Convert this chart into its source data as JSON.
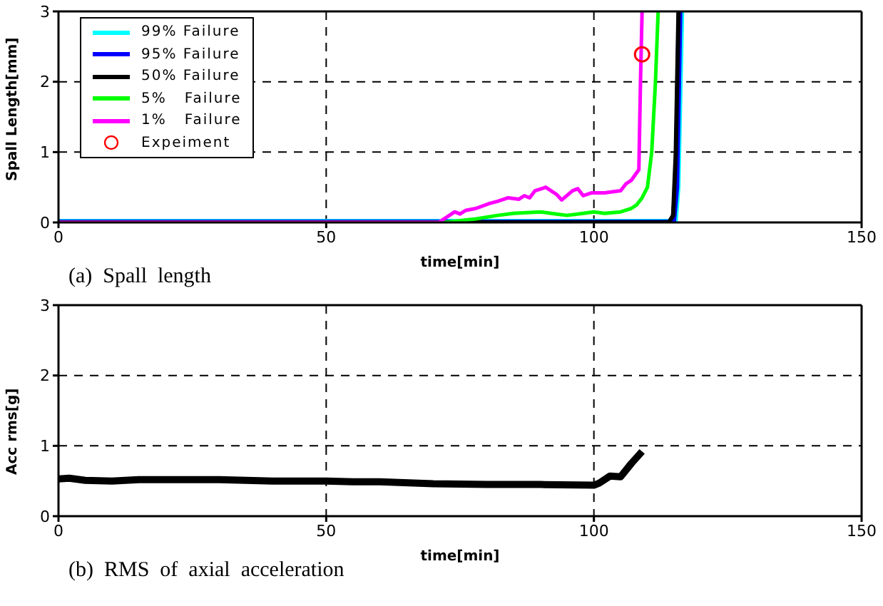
{
  "chart_data": [
    {
      "type": "line",
      "xlabel": "time[min]",
      "ylabel": "Spall Length[mm]",
      "xlim": [
        0,
        150
      ],
      "xticks": [
        0,
        50,
        100,
        150
      ],
      "ylim": [
        0,
        3
      ],
      "yticks": [
        0,
        1,
        2,
        3
      ],
      "grid": true,
      "legend": "top left",
      "line_style": "solid",
      "annotations": [
        "(a)  Spall  length"
      ],
      "series": [
        {
          "name": "99% Failure",
          "color": "#00ffff",
          "marker": "none",
          "x": [
            0,
            115,
            115.5,
            116.2
          ],
          "values": [
            0,
            0,
            0.5,
            3
          ]
        },
        {
          "name": "95% Failure",
          "color": "#0000ff",
          "marker": "none",
          "x": [
            0,
            114.8,
            115.4,
            116
          ],
          "values": [
            0,
            0,
            0.5,
            3
          ]
        },
        {
          "name": "50% Failure",
          "color": "#000000",
          "marker": "none",
          "x": [
            0,
            114,
            114.8,
            115.3,
            115.8
          ],
          "values": [
            0,
            0,
            0.1,
            1,
            3
          ]
        },
        {
          "name": "5%   Failure",
          "color": "#00ff00",
          "marker": "none",
          "x": [
            0,
            72,
            78,
            82,
            85,
            90,
            93,
            95,
            98,
            100,
            102,
            105,
            107,
            108,
            109,
            110,
            110.8,
            111.5,
            112
          ],
          "values": [
            0,
            0,
            0.05,
            0.1,
            0.13,
            0.15,
            0.12,
            0.1,
            0.13,
            0.15,
            0.13,
            0.15,
            0.2,
            0.25,
            0.35,
            0.5,
            1,
            2,
            3
          ]
        },
        {
          "name": "1%   Failure",
          "color": "#ff00ff",
          "marker": "none",
          "x": [
            0,
            71,
            73,
            74,
            75,
            76,
            78,
            80.5,
            82,
            84,
            86,
            87,
            88,
            89,
            91,
            92,
            93,
            94,
            96,
            97,
            98,
            99.5,
            102,
            105,
            106,
            107,
            108.4,
            108.7,
            109
          ],
          "values": [
            0,
            0,
            0.1,
            0.15,
            0.12,
            0.17,
            0.2,
            0.27,
            0.3,
            0.35,
            0.33,
            0.38,
            0.35,
            0.45,
            0.5,
            0.45,
            0.4,
            0.32,
            0.45,
            0.48,
            0.38,
            0.42,
            0.42,
            0.45,
            0.55,
            0.6,
            0.75,
            2,
            3
          ]
        },
        {
          "name": "Expeiment",
          "type": "scatter",
          "color": "#ff0000",
          "marker": "circle",
          "x": [
            109
          ],
          "values": [
            2.39
          ]
        }
      ]
    },
    {
      "type": "line",
      "xlabel": "time[min]",
      "ylabel": "Acc rms[g]",
      "xlim": [
        0,
        150
      ],
      "xticks": [
        0,
        50,
        100,
        150
      ],
      "ylim": [
        0,
        3
      ],
      "yticks": [
        0,
        1,
        2,
        3
      ],
      "grid": true,
      "line_style": "solid",
      "annotations": [
        "(b)  RMS  of  axial  acceleration"
      ],
      "series": [
        {
          "color": "#000000",
          "marker": "none",
          "x": [
            0,
            2,
            5,
            10,
            15,
            20,
            30,
            40,
            50,
            55,
            60,
            70,
            80,
            90,
            100,
            101,
            103,
            105,
            107,
            109
          ],
          "values": [
            0.53,
            0.54,
            0.51,
            0.5,
            0.52,
            0.52,
            0.52,
            0.5,
            0.5,
            0.49,
            0.49,
            0.46,
            0.45,
            0.45,
            0.44,
            0.47,
            0.57,
            0.56,
            0.75,
            0.92
          ]
        }
      ]
    }
  ]
}
